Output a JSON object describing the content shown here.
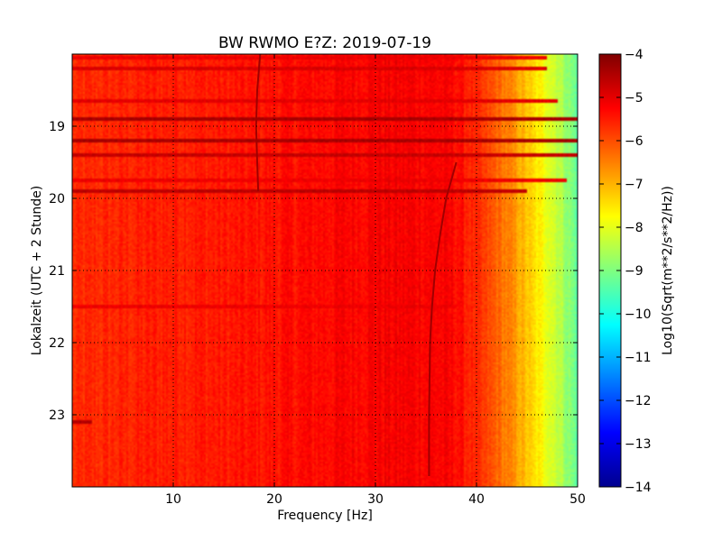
{
  "chart_data": {
    "type": "heatmap",
    "title": "BW RWMO E?Z: 2019-07-19",
    "xlabel": "Frequency [Hz]",
    "ylabel": "Lokalzeit (UTC + 2 Stunde)",
    "colorbar_label": "Log10(Sqrt(m**2/s**2/Hz))",
    "colormap": "jet",
    "xlim": [
      0,
      50
    ],
    "ylim": [
      24,
      18
    ],
    "clim": [
      -14,
      -4
    ],
    "grid": true,
    "x_ticks": [
      10,
      20,
      30,
      40,
      50
    ],
    "x_tick_labels": [
      "10",
      "20",
      "30",
      "40",
      "50"
    ],
    "y_ticks": [
      19,
      20,
      21,
      22,
      23
    ],
    "y_tick_labels": [
      "19",
      "20",
      "21",
      "22",
      "23"
    ],
    "colorbar_ticks": [
      -4,
      -5,
      -6,
      -7,
      -8,
      -9,
      -10,
      -11,
      -12,
      -13,
      -14
    ],
    "colorbar_tick_labels": [
      "−4",
      "−5",
      "−6",
      "−7",
      "−8",
      "−9",
      "−10",
      "−11",
      "−12",
      "−13",
      "−14"
    ],
    "frequency_profile": {
      "frequency_hz": [
        0,
        5,
        10,
        15,
        20,
        25,
        30,
        35,
        38,
        40,
        42,
        44,
        45,
        46,
        47,
        48,
        49,
        50
      ],
      "log10_amplitude": [
        -5.7,
        -5.6,
        -5.5,
        -5.5,
        -5.4,
        -5.3,
        -5.2,
        -5.2,
        -5.3,
        -5.7,
        -6.2,
        -6.8,
        -7.2,
        -7.6,
        -7.9,
        -8.3,
        -8.8,
        -9.3
      ]
    },
    "bright_bands": [
      {
        "time_hours": 18.05,
        "f_max_hz": 47,
        "log10_amplitude": -5.1
      },
      {
        "time_hours": 18.2,
        "f_max_hz": 47,
        "log10_amplitude": -4.9
      },
      {
        "time_hours": 18.65,
        "f_max_hz": 48,
        "log10_amplitude": -5.0
      },
      {
        "time_hours": 18.9,
        "f_max_hz": 50,
        "log10_amplitude": -4.4
      },
      {
        "time_hours": 19.2,
        "f_max_hz": 50,
        "log10_amplitude": -4.4
      },
      {
        "time_hours": 19.4,
        "f_max_hz": 50,
        "log10_amplitude": -4.7
      },
      {
        "time_hours": 19.75,
        "f_max_hz": 49,
        "log10_amplitude": -5.1
      },
      {
        "time_hours": 19.9,
        "f_max_hz": 45,
        "log10_amplitude": -4.6
      },
      {
        "time_hours": 21.5,
        "f_max_hz": 38,
        "log10_amplitude": -5.1
      },
      {
        "time_hours": 23.1,
        "f_max_hz": 2,
        "log10_amplitude": -4.5
      }
    ],
    "tonal_lines": [
      {
        "times_hours": [
          18.0,
          18.5,
          19.0,
          19.5,
          19.9
        ],
        "frequency_hz": [
          18.6,
          18.3,
          18.2,
          18.3,
          18.4
        ]
      },
      {
        "times_hours": [
          19.5,
          20.0,
          20.5,
          21.0,
          21.5,
          22.0,
          23.0,
          23.85
        ],
        "frequency_hz": [
          38.0,
          37.0,
          36.4,
          35.9,
          35.6,
          35.4,
          35.3,
          35.3
        ]
      }
    ]
  }
}
